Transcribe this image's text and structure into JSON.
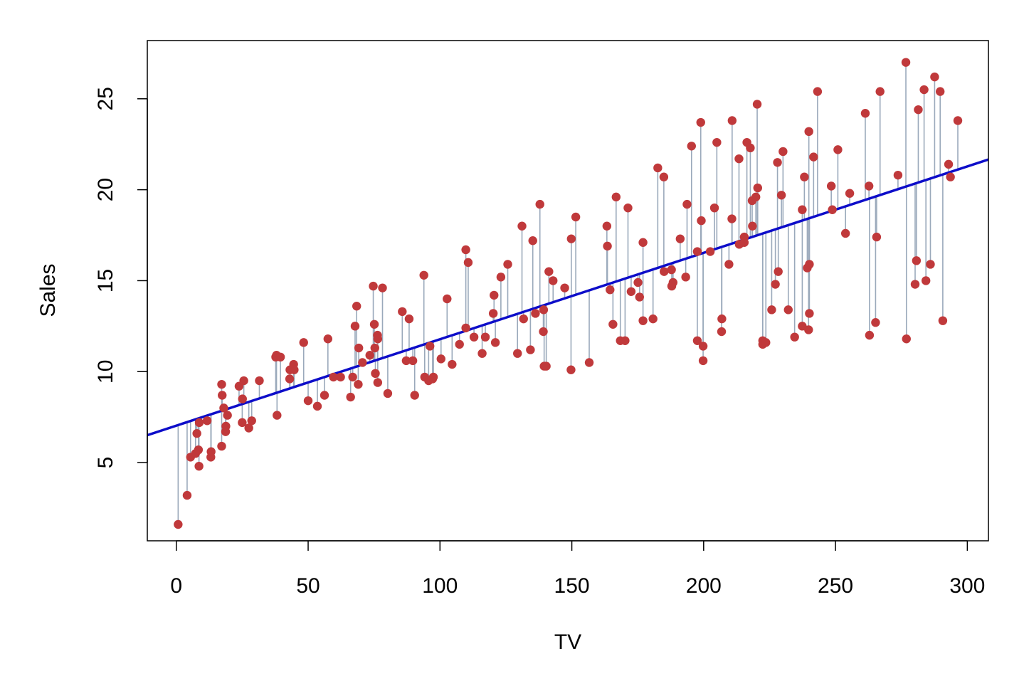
{
  "chart_data": {
    "type": "scatter",
    "title": "",
    "xlabel": "TV",
    "ylabel": "Sales",
    "xlim": [
      -11,
      308
    ],
    "ylim": [
      0.7,
      28.2
    ],
    "xticks": [
      0,
      50,
      100,
      150,
      200,
      250,
      300
    ],
    "yticks": [
      5,
      10,
      15,
      20,
      25
    ],
    "grid": false,
    "legend": "none",
    "fit_line": {
      "intercept": 7.03,
      "slope": 0.0475
    },
    "colors": {
      "points": "#c0393b",
      "fit_line": "#0d0dc9",
      "residuals": "#9aa9bb",
      "frame": "#000000"
    },
    "points": [
      [
        0.7,
        1.6
      ],
      [
        4.1,
        3.2
      ],
      [
        5.4,
        5.3
      ],
      [
        7.3,
        5.5
      ],
      [
        7.8,
        6.6
      ],
      [
        8.4,
        5.7
      ],
      [
        8.6,
        4.8
      ],
      [
        8.7,
        7.2
      ],
      [
        11.7,
        7.3
      ],
      [
        13.1,
        5.3
      ],
      [
        13.2,
        5.6
      ],
      [
        17.2,
        5.9
      ],
      [
        17.2,
        9.3
      ],
      [
        17.4,
        8.7
      ],
      [
        18.0,
        8.0
      ],
      [
        18.7,
        6.7
      ],
      [
        18.8,
        7.0
      ],
      [
        19.4,
        7.6
      ],
      [
        23.8,
        9.2
      ],
      [
        25.0,
        7.2
      ],
      [
        25.1,
        8.5
      ],
      [
        25.6,
        9.5
      ],
      [
        27.5,
        6.9
      ],
      [
        28.6,
        7.3
      ],
      [
        31.5,
        9.5
      ],
      [
        37.7,
        10.8
      ],
      [
        38.0,
        10.9
      ],
      [
        38.2,
        7.6
      ],
      [
        39.5,
        10.8
      ],
      [
        43.0,
        9.6
      ],
      [
        43.1,
        10.1
      ],
      [
        44.5,
        10.4
      ],
      [
        44.7,
        10.1
      ],
      [
        48.3,
        11.6
      ],
      [
        50.0,
        8.4
      ],
      [
        53.5,
        8.1
      ],
      [
        56.2,
        8.7
      ],
      [
        57.5,
        11.8
      ],
      [
        59.6,
        9.7
      ],
      [
        62.3,
        9.7
      ],
      [
        66.1,
        8.6
      ],
      [
        66.9,
        9.7
      ],
      [
        67.8,
        12.5
      ],
      [
        68.4,
        13.6
      ],
      [
        69.0,
        9.3
      ],
      [
        69.2,
        11.3
      ],
      [
        70.6,
        10.5
      ],
      [
        73.4,
        10.9
      ],
      [
        74.7,
        14.7
      ],
      [
        75.1,
        12.6
      ],
      [
        75.3,
        11.3
      ],
      [
        75.5,
        9.9
      ],
      [
        76.3,
        12.0
      ],
      [
        76.4,
        11.8
      ],
      [
        76.4,
        9.4
      ],
      [
        78.2,
        14.6
      ],
      [
        80.2,
        8.8
      ],
      [
        85.7,
        13.3
      ],
      [
        87.2,
        10.6
      ],
      [
        88.3,
        12.9
      ],
      [
        89.7,
        10.6
      ],
      [
        90.4,
        8.7
      ],
      [
        93.9,
        15.3
      ],
      [
        94.2,
        9.7
      ],
      [
        95.7,
        9.5
      ],
      [
        96.2,
        11.4
      ],
      [
        97.2,
        9.6
      ],
      [
        97.5,
        9.7
      ],
      [
        100.4,
        10.7
      ],
      [
        102.7,
        14.0
      ],
      [
        104.6,
        10.4
      ],
      [
        107.4,
        11.5
      ],
      [
        109.8,
        12.4
      ],
      [
        109.8,
        16.7
      ],
      [
        110.7,
        16.0
      ],
      [
        112.9,
        11.9
      ],
      [
        116.0,
        11.0
      ],
      [
        117.2,
        11.9
      ],
      [
        120.2,
        13.2
      ],
      [
        120.5,
        14.2
      ],
      [
        121.0,
        11.6
      ],
      [
        123.1,
        15.2
      ],
      [
        125.7,
        15.9
      ],
      [
        129.4,
        11.0
      ],
      [
        131.1,
        18.0
      ],
      [
        131.7,
        12.9
      ],
      [
        134.3,
        11.2
      ],
      [
        135.2,
        17.2
      ],
      [
        136.2,
        13.2
      ],
      [
        137.9,
        19.2
      ],
      [
        139.2,
        12.2
      ],
      [
        139.3,
        13.4
      ],
      [
        139.5,
        10.3
      ],
      [
        140.3,
        10.3
      ],
      [
        141.3,
        15.5
      ],
      [
        142.9,
        15.0
      ],
      [
        147.3,
        14.6
      ],
      [
        149.7,
        10.1
      ],
      [
        149.8,
        17.3
      ],
      [
        151.5,
        18.5
      ],
      [
        156.6,
        10.5
      ],
      [
        163.3,
        18.0
      ],
      [
        163.5,
        16.9
      ],
      [
        164.5,
        14.5
      ],
      [
        165.6,
        12.6
      ],
      [
        166.8,
        19.6
      ],
      [
        168.4,
        11.7
      ],
      [
        170.2,
        11.7
      ],
      [
        171.3,
        19.0
      ],
      [
        172.5,
        14.4
      ],
      [
        175.1,
        14.9
      ],
      [
        175.7,
        14.1
      ],
      [
        177.0,
        12.8
      ],
      [
        177.0,
        17.1
      ],
      [
        180.8,
        12.9
      ],
      [
        182.6,
        21.2
      ],
      [
        184.9,
        20.7
      ],
      [
        185.0,
        15.5
      ],
      [
        187.8,
        15.6
      ],
      [
        187.9,
        14.7
      ],
      [
        188.4,
        14.9
      ],
      [
        191.1,
        17.3
      ],
      [
        193.2,
        15.2
      ],
      [
        193.7,
        19.2
      ],
      [
        195.4,
        22.4
      ],
      [
        197.6,
        16.6
      ],
      [
        197.6,
        11.7
      ],
      [
        198.9,
        23.7
      ],
      [
        199.1,
        18.3
      ],
      [
        199.8,
        11.4
      ],
      [
        199.8,
        10.6
      ],
      [
        202.5,
        16.6
      ],
      [
        204.1,
        19.0
      ],
      [
        205.0,
        22.6
      ],
      [
        206.8,
        12.2
      ],
      [
        206.9,
        12.9
      ],
      [
        209.6,
        15.9
      ],
      [
        210.7,
        18.4
      ],
      [
        210.8,
        23.8
      ],
      [
        213.4,
        21.7
      ],
      [
        213.5,
        17.0
      ],
      [
        215.4,
        17.4
      ],
      [
        215.4,
        17.1
      ],
      [
        216.4,
        22.6
      ],
      [
        217.7,
        22.3
      ],
      [
        218.4,
        19.4
      ],
      [
        218.5,
        18.0
      ],
      [
        219.8,
        19.6
      ],
      [
        220.3,
        24.7
      ],
      [
        220.5,
        20.1
      ],
      [
        222.4,
        11.5
      ],
      [
        222.4,
        11.7
      ],
      [
        223.6,
        11.6
      ],
      [
        225.8,
        13.4
      ],
      [
        227.2,
        14.8
      ],
      [
        228.0,
        21.5
      ],
      [
        228.3,
        15.5
      ],
      [
        229.5,
        19.7
      ],
      [
        230.1,
        22.1
      ],
      [
        232.1,
        13.4
      ],
      [
        234.5,
        11.9
      ],
      [
        237.4,
        12.5
      ],
      [
        237.4,
        18.9
      ],
      [
        238.2,
        20.7
      ],
      [
        239.3,
        15.7
      ],
      [
        239.8,
        12.3
      ],
      [
        239.9,
        23.2
      ],
      [
        240.1,
        13.2
      ],
      [
        240.1,
        15.9
      ],
      [
        241.7,
        21.8
      ],
      [
        243.2,
        25.4
      ],
      [
        248.4,
        20.2
      ],
      [
        248.8,
        18.9
      ],
      [
        250.9,
        22.2
      ],
      [
        253.8,
        17.6
      ],
      [
        255.4,
        19.8
      ],
      [
        261.3,
        24.2
      ],
      [
        262.7,
        20.2
      ],
      [
        262.9,
        12.0
      ],
      [
        265.2,
        12.7
      ],
      [
        265.6,
        17.4
      ],
      [
        266.9,
        25.4
      ],
      [
        273.7,
        20.8
      ],
      [
        276.7,
        27.0
      ],
      [
        276.9,
        11.8
      ],
      [
        280.2,
        14.8
      ],
      [
        280.7,
        16.1
      ],
      [
        281.4,
        24.4
      ],
      [
        283.6,
        25.5
      ],
      [
        284.3,
        15.0
      ],
      [
        286.0,
        15.9
      ],
      [
        287.6,
        26.2
      ],
      [
        289.7,
        25.4
      ],
      [
        290.7,
        12.8
      ],
      [
        292.9,
        21.4
      ],
      [
        293.6,
        20.7
      ],
      [
        296.4,
        23.8
      ]
    ]
  }
}
